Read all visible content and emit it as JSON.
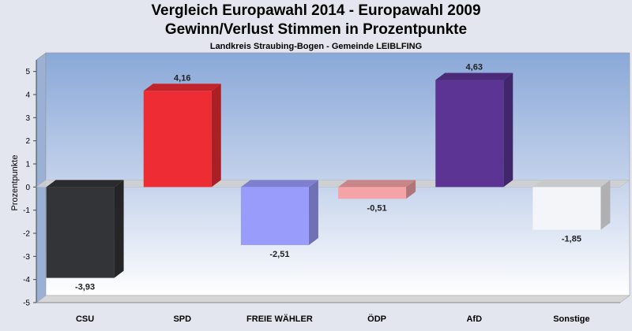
{
  "chart_data": {
    "type": "bar",
    "title": "Vergleich Europawahl 2014 - Europawahl 2009",
    "title2": "Gewinn/Verlust Stimmen in Prozentpunkte",
    "subtitle": "Landkreis Straubing-Bogen - Gemeinde LEIBLFING",
    "ylabel": "Prozentpunkte",
    "xlabel": "",
    "ylim": [
      -5,
      5.5
    ],
    "yticks": [
      5,
      4,
      3,
      2,
      1,
      0,
      -1,
      -2,
      -3,
      -4,
      -5
    ],
    "categories": [
      "CSU",
      "SPD",
      "FREIE WÄHLER",
      "ÖDP",
      "AfD",
      "Sonstige"
    ],
    "values": [
      -3.93,
      4.16,
      -2.51,
      -0.51,
      4.63,
      -1.85
    ],
    "value_labels": [
      "-3,93",
      "4,16",
      "-2,51",
      "-0,51",
      "4,63",
      "-1,85"
    ],
    "colors": [
      "#333438",
      "#ee2c34",
      "#9a9cfc",
      "#f4a3a6",
      "#5c3594",
      "#f4f5f8"
    ],
    "grid": false,
    "legend": "none"
  }
}
